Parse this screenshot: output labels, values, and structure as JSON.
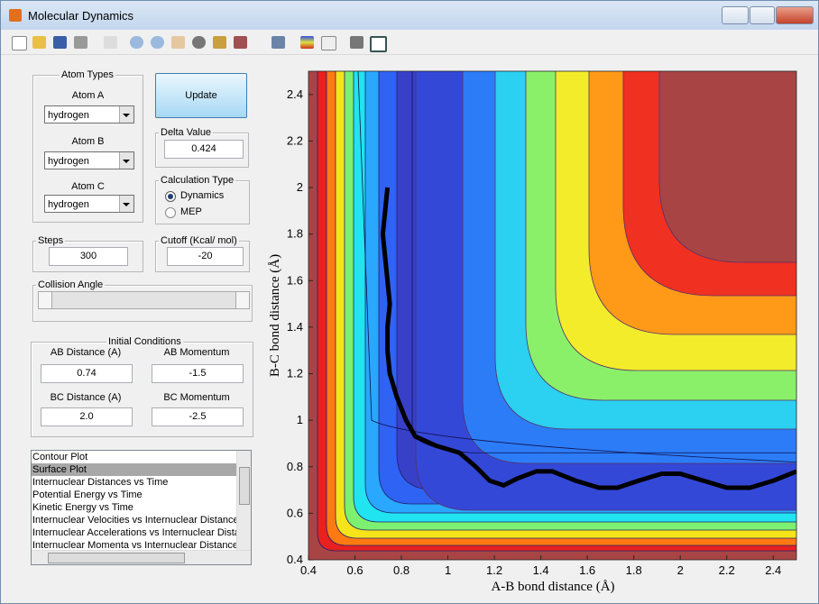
{
  "window": {
    "title": "Molecular Dynamics"
  },
  "atom_types": {
    "title": "Atom Types",
    "atom_a": {
      "label": "Atom A",
      "value": "hydrogen"
    },
    "atom_b": {
      "label": "Atom B",
      "value": "hydrogen"
    },
    "atom_c": {
      "label": "Atom C",
      "value": "hydrogen"
    }
  },
  "update_button": "Update",
  "delta_value": {
    "label": "Delta Value",
    "value": "0.424"
  },
  "calculation_type": {
    "title": "Calculation Type",
    "options": [
      "Dynamics",
      "MEP"
    ]
  },
  "steps": {
    "label": "Steps",
    "value": "300"
  },
  "cutoff": {
    "label": "Cutoff (Kcal/ mol)",
    "value": "-20"
  },
  "collision_angle": {
    "label": "Collision Angle"
  },
  "initial_conditions": {
    "title": "Initial Conditions",
    "fields": [
      {
        "label": "AB Distance (A)",
        "value": "0.74"
      },
      {
        "label": "AB Momentum",
        "value": "-1.5"
      },
      {
        "label": "BC Distance (A)",
        "value": "2.0"
      },
      {
        "label": "BC Momentum",
        "value": "-2.5"
      }
    ]
  },
  "plot_list": {
    "items": [
      "Contour Plot",
      "Surface Plot",
      "Internuclear Distances vs Time",
      "Potential Energy vs Time",
      "Kinetic Energy vs Time",
      "Internuclear Velocities vs Internuclear Distance",
      "Internuclear Accelerations vs Internuclear Distance",
      "Internuclear Momenta vs Internuclear Distance"
    ]
  },
  "chart_data": {
    "type": "line",
    "x_label": "A-B bond distance (Å)",
    "y_label": "B-C bond distance (Å)",
    "xlim": [
      0.4,
      2.5
    ],
    "ylim": [
      0.4,
      2.5
    ],
    "xticks": [
      0.4,
      0.6,
      0.8,
      1,
      1.2,
      1.4,
      1.6,
      1.8,
      2,
      2.2,
      2.4
    ],
    "yticks": [
      0.4,
      0.6,
      0.8,
      1,
      1.2,
      1.4,
      1.6,
      1.8,
      2,
      2.2,
      2.4
    ],
    "series": [
      {
        "color": "#000000",
        "x": [
          0.74,
          0.73,
          0.72,
          0.73,
          0.74,
          0.75,
          0.74,
          0.74,
          0.75,
          0.78,
          0.82,
          0.86,
          0.95,
          1.05,
          1.12,
          1.18,
          1.24,
          1.3,
          1.38,
          1.45,
          1.55,
          1.65,
          1.73,
          1.82,
          1.92,
          2.0,
          2.1,
          2.2,
          2.3,
          2.4,
          2.5
        ],
        "values": [
          2.0,
          1.9,
          1.8,
          1.7,
          1.6,
          1.5,
          1.4,
          1.3,
          1.2,
          1.1,
          1.0,
          0.93,
          0.89,
          0.86,
          0.8,
          0.74,
          0.72,
          0.75,
          0.78,
          0.78,
          0.74,
          0.71,
          0.71,
          0.74,
          0.77,
          0.77,
          0.74,
          0.71,
          0.71,
          0.74,
          0.78
        ]
      }
    ]
  }
}
